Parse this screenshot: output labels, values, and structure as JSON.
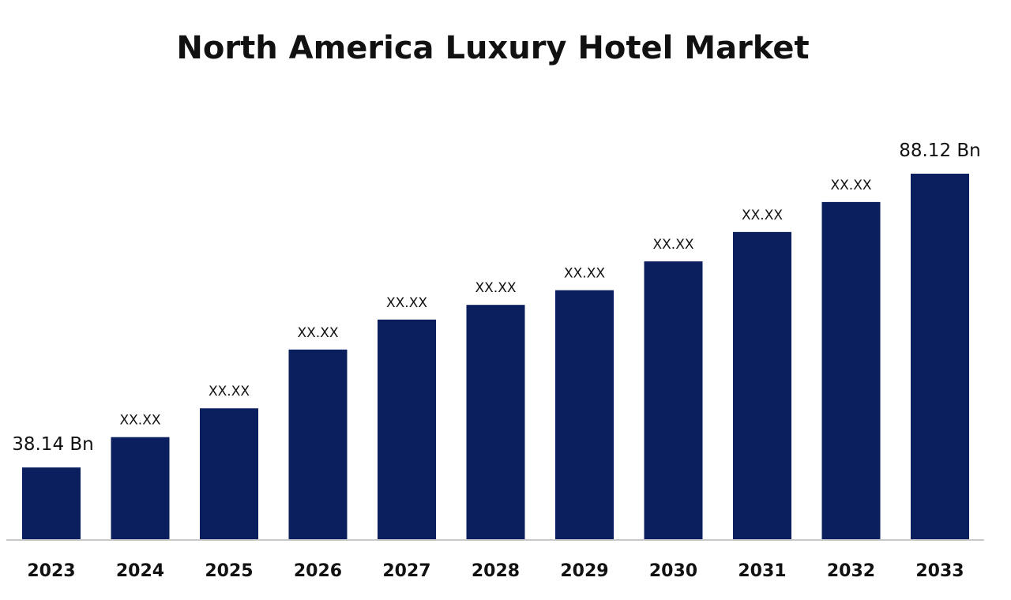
{
  "chart_data": {
    "type": "bar",
    "title": "North America Luxury Hotel Market",
    "xlabel": "",
    "ylabel": "",
    "categories": [
      "2023",
      "2024",
      "2025",
      "2026",
      "2027",
      "2028",
      "2029",
      "2030",
      "2031",
      "2032",
      "2033"
    ],
    "values": [
      38.14,
      43.3,
      48.2,
      58.2,
      63.3,
      65.8,
      68.3,
      73.2,
      78.2,
      83.3,
      88.12
    ],
    "data_labels": [
      "38.14 Bn",
      "XX.XX",
      "XX.XX",
      "XX.XX",
      "XX.XX",
      "XX.XX",
      "XX.XX",
      "XX.XX",
      "XX.XX",
      "XX.XX",
      "88.12 Bn"
    ],
    "ylim": [
      25.8,
      88.12
    ],
    "grid": false,
    "legend": "none",
    "bar_color": "#0b1f5e",
    "axis_color": "#c8c8c8"
  }
}
